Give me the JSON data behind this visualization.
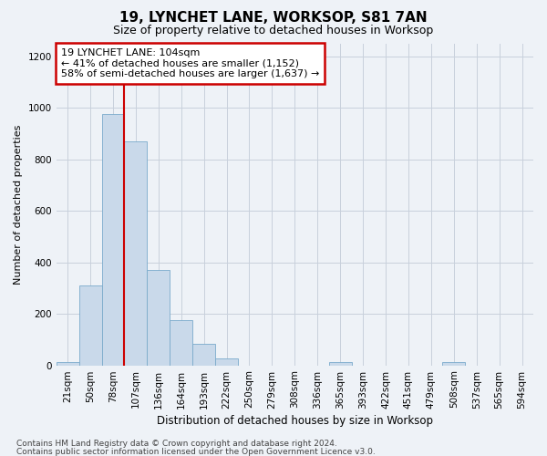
{
  "title": "19, LYNCHET LANE, WORKSOP, S81 7AN",
  "subtitle": "Size of property relative to detached houses in Worksop",
  "xlabel": "Distribution of detached houses by size in Worksop",
  "ylabel": "Number of detached properties",
  "footer1": "Contains HM Land Registry data © Crown copyright and database right 2024.",
  "footer2": "Contains public sector information licensed under the Open Government Licence v3.0.",
  "annotation_title": "19 LYNCHET LANE: 104sqm",
  "annotation_line1": "← 41% of detached houses are smaller (1,152)",
  "annotation_line2": "58% of semi-detached houses are larger (1,637) →",
  "bar_color": "#c9d9ea",
  "bar_edge_color": "#7aaacb",
  "vline_color": "#cc0000",
  "vline_x": 3.0,
  "categories": [
    "21sqm",
    "50sqm",
    "78sqm",
    "107sqm",
    "136sqm",
    "164sqm",
    "193sqm",
    "222sqm",
    "250sqm",
    "279sqm",
    "308sqm",
    "336sqm",
    "365sqm",
    "393sqm",
    "422sqm",
    "451sqm",
    "479sqm",
    "508sqm",
    "537sqm",
    "565sqm",
    "594sqm"
  ],
  "values": [
    12,
    310,
    975,
    870,
    370,
    175,
    85,
    27,
    0,
    0,
    0,
    0,
    12,
    0,
    0,
    0,
    0,
    12,
    0,
    0,
    0
  ],
  "ylim": [
    0,
    1250
  ],
  "yticks": [
    0,
    200,
    400,
    600,
    800,
    1000,
    1200
  ],
  "grid_color": "#c8d0dc",
  "background_color": "#eef2f7",
  "annotation_box_facecolor": "#ffffff",
  "annotation_box_edgecolor": "#cc0000",
  "title_fontsize": 11,
  "subtitle_fontsize": 9,
  "ylabel_fontsize": 8,
  "xlabel_fontsize": 8.5,
  "tick_fontsize": 7.5,
  "footer_fontsize": 6.5
}
